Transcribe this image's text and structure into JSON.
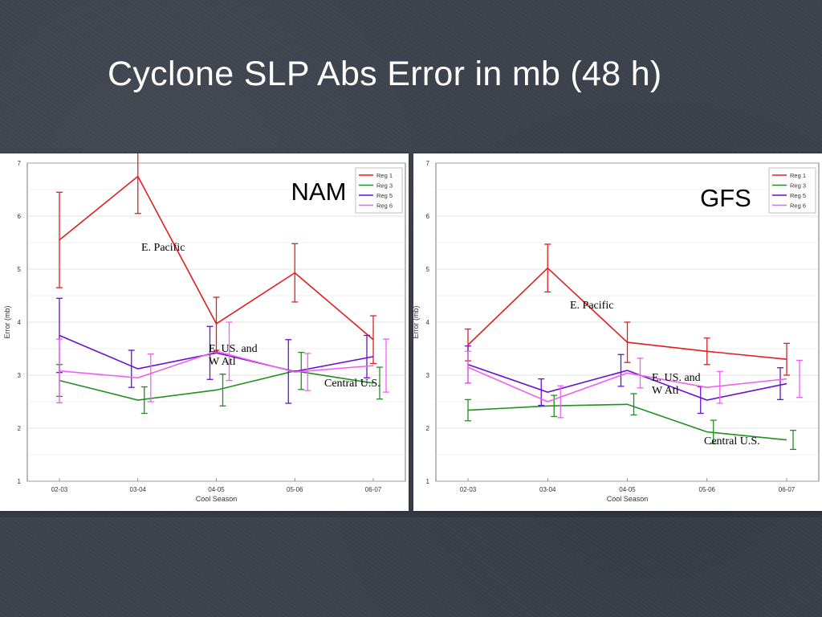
{
  "slide": {
    "title": "Cyclone SLP Abs Error in mb (48 h)"
  },
  "colors": {
    "reg1": "#e02020",
    "reg3": "#209020",
    "reg5": "#6a10d0",
    "reg6": "#f060f0",
    "annotation": "#000000"
  },
  "chart_data": [
    {
      "type": "line",
      "title": "NAM",
      "xlabel": "Cool Season",
      "ylabel": "Error (mb)",
      "categories": [
        "02-03",
        "03-04",
        "04-05",
        "05-06",
        "06-07"
      ],
      "ylim": [
        1,
        7
      ],
      "yticks": [
        "1",
        "2",
        "3",
        "4",
        "5",
        "6",
        "7"
      ],
      "legend": {
        "placement": "top-right",
        "entries": [
          "Reg 1",
          "Reg 3",
          "Reg 5",
          "Reg 6"
        ]
      },
      "series": [
        {
          "name": "Reg 1",
          "color": "#e02020",
          "values": [
            5.55,
            6.75,
            3.97,
            4.93,
            3.67
          ],
          "err": [
            0.9,
            0.7,
            0.5,
            0.55,
            0.45
          ]
        },
        {
          "name": "Reg 3",
          "color": "#209020",
          "values": [
            2.9,
            2.53,
            2.72,
            3.08,
            2.85
          ],
          "err": [
            0.3,
            0.25,
            0.3,
            0.35,
            0.3
          ]
        },
        {
          "name": "Reg 5",
          "color": "#6a10d0",
          "values": [
            3.75,
            3.12,
            3.42,
            3.07,
            3.35
          ],
          "err": [
            0.7,
            0.35,
            0.5,
            0.6,
            0.4
          ]
        },
        {
          "name": "Reg 6",
          "color": "#f060f0",
          "values": [
            3.08,
            2.95,
            3.45,
            3.06,
            3.18
          ],
          "err": [
            0.6,
            0.45,
            0.55,
            0.35,
            0.5
          ]
        }
      ],
      "annotations": [
        {
          "text": "E. Pacific",
          "region": "Reg 1"
        },
        {
          "text": "E. US. and\nW Atl",
          "region": "Reg 5"
        },
        {
          "text": "Central U.S.",
          "region": "Reg 3"
        }
      ]
    },
    {
      "type": "line",
      "title": "GFS",
      "xlabel": "Cool Season",
      "ylabel": "Error (mb)",
      "categories": [
        "02-03",
        "03-04",
        "04-05",
        "05-06",
        "06-07"
      ],
      "ylim": [
        1,
        7
      ],
      "yticks": [
        "1",
        "2",
        "3",
        "4",
        "5",
        "6",
        "7"
      ],
      "legend": {
        "placement": "top-right",
        "entries": [
          "Reg 1",
          "Reg 3",
          "Reg 5",
          "Reg 6"
        ]
      },
      "series": [
        {
          "name": "Reg 1",
          "color": "#e02020",
          "values": [
            3.57,
            5.02,
            3.62,
            3.45,
            3.3
          ],
          "err": [
            0.3,
            0.45,
            0.38,
            0.25,
            0.3
          ]
        },
        {
          "name": "Reg 3",
          "color": "#209020",
          "values": [
            2.34,
            2.42,
            2.45,
            1.93,
            1.78
          ],
          "err": [
            0.2,
            0.2,
            0.2,
            0.22,
            0.18
          ]
        },
        {
          "name": "Reg 5",
          "color": "#6a10d0",
          "values": [
            3.2,
            2.68,
            3.09,
            2.53,
            2.84
          ],
          "err": [
            0.35,
            0.25,
            0.3,
            0.25,
            0.3
          ]
        },
        {
          "name": "Reg 6",
          "color": "#f060f0",
          "values": [
            3.15,
            2.5,
            3.04,
            2.77,
            2.93
          ],
          "err": [
            0.3,
            0.3,
            0.28,
            0.3,
            0.35
          ]
        }
      ],
      "annotations": [
        {
          "text": "E. Pacific",
          "region": "Reg 1"
        },
        {
          "text": "E. US. and\nW Atl",
          "region": "Reg 5"
        },
        {
          "text": "Central U.S.",
          "region": "Reg 3"
        }
      ]
    }
  ]
}
